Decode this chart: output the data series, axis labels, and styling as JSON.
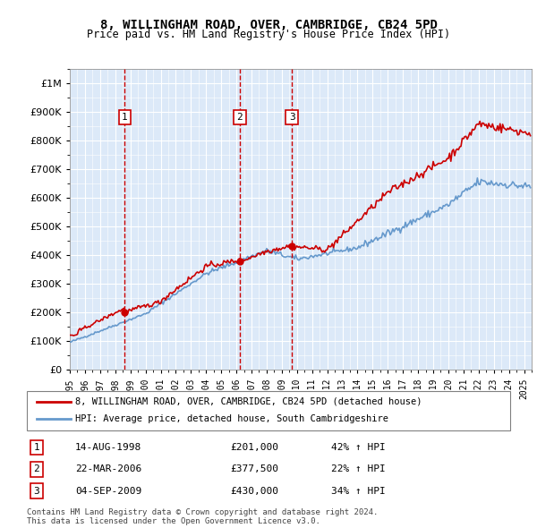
{
  "title": "8, WILLINGHAM ROAD, OVER, CAMBRIDGE, CB24 5PD",
  "subtitle": "Price paid vs. HM Land Registry's House Price Index (HPI)",
  "legend_label_red": "8, WILLINGHAM ROAD, OVER, CAMBRIDGE, CB24 5PD (detached house)",
  "legend_label_blue": "HPI: Average price, detached house, South Cambridgeshire",
  "footer1": "Contains HM Land Registry data © Crown copyright and database right 2024.",
  "footer2": "This data is licensed under the Open Government Licence v3.0.",
  "transactions": [
    {
      "num": 1,
      "date": "14-AUG-1998",
      "price": 201000,
      "hpi_pct": "42% ↑ HPI",
      "x_year": 1998.62
    },
    {
      "num": 2,
      "date": "22-MAR-2006",
      "price": 377500,
      "hpi_pct": "22% ↑ HPI",
      "x_year": 2006.22
    },
    {
      "num": 3,
      "date": "04-SEP-2009",
      "price": 430000,
      "hpi_pct": "34% ↑ HPI",
      "x_year": 2009.67
    }
  ],
  "background_color": "#dce9f8",
  "plot_bg_color": "#dce9f8",
  "red_color": "#cc0000",
  "blue_color": "#6699cc",
  "dashed_color": "#cc0000",
  "ylim": [
    0,
    1050000
  ],
  "xlim_start": 1995.0,
  "xlim_end": 2025.5
}
